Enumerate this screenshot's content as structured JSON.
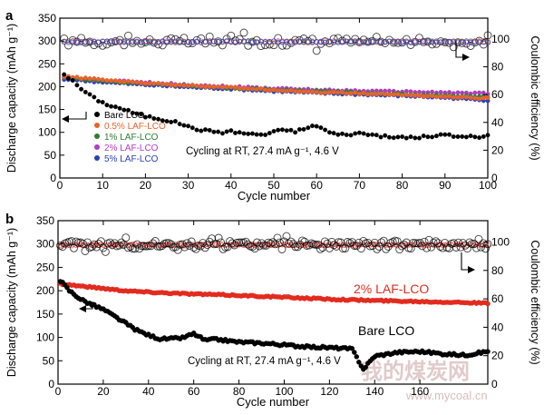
{
  "colors": {
    "bare": "#000000",
    "laf_0_5": "#e8632a",
    "laf_1": "#2e7d32",
    "laf_2_purple": "#b13cc0",
    "laf_5": "#2b3fb5",
    "laf_2_red": "#e22b1f",
    "axis": "#000000",
    "watermark": "#c9a0a0"
  },
  "watermark": {
    "text": "我的煤炭网",
    "url": "www.mycoal.cn"
  },
  "chart_data": [
    {
      "panel": "a",
      "type": "scatter",
      "annotation": "Cycling at RT, 27.4 mA g⁻¹, 4.6 V",
      "xlabel": "Cycle number",
      "ylabel": "Discharge capacity (mAh g⁻¹)",
      "y2label": "Coulombic efficiency (%)",
      "xlim": [
        0,
        100
      ],
      "ylim": [
        0,
        350
      ],
      "y2lim": [
        0,
        115
      ],
      "xticks": [
        0,
        10,
        20,
        30,
        40,
        50,
        60,
        70,
        80,
        90,
        100
      ],
      "yticks": [
        0,
        50,
        100,
        150,
        200,
        250,
        300,
        350
      ],
      "y2ticks": [
        0,
        20,
        40,
        60,
        80,
        100
      ],
      "legend_position": "lower-left",
      "series": [
        {
          "name": "Bare LCO",
          "color": "#000000",
          "capacity_x": [
            1,
            3,
            5,
            8,
            10,
            12,
            15,
            18,
            20,
            23,
            25,
            28,
            30,
            33,
            35,
            38,
            40,
            43,
            45,
            48,
            50,
            53,
            55,
            58,
            60,
            63,
            65,
            68,
            70,
            73,
            75,
            78,
            80,
            83,
            85,
            88,
            90,
            93,
            95,
            98,
            100
          ],
          "capacity_y": [
            228,
            212,
            195,
            175,
            165,
            158,
            150,
            140,
            135,
            130,
            126,
            120,
            112,
            105,
            103,
            100,
            102,
            98,
            96,
            95,
            102,
            105,
            102,
            110,
            115,
            100,
            95,
            96,
            98,
            95,
            92,
            88,
            90,
            88,
            90,
            92,
            95,
            90,
            92,
            88,
            92
          ]
        },
        {
          "name": "0.5% LAF-LCO",
          "color": "#e8632a",
          "capacity_x": [
            1,
            10,
            20,
            30,
            40,
            50,
            60,
            70,
            80,
            90,
            100
          ],
          "capacity_y": [
            222,
            215,
            208,
            203,
            198,
            193,
            188,
            185,
            182,
            178,
            174
          ]
        },
        {
          "name": "1% LAF-LCO",
          "color": "#2e7d32",
          "capacity_x": [
            1,
            10,
            20,
            30,
            40,
            50,
            60,
            70,
            80,
            90,
            100
          ],
          "capacity_y": [
            220,
            213,
            207,
            202,
            197,
            193,
            190,
            187,
            184,
            181,
            178
          ]
        },
        {
          "name": "2% LAF-LCO",
          "color": "#b13cc0",
          "capacity_x": [
            1,
            10,
            20,
            30,
            40,
            50,
            60,
            70,
            80,
            90,
            100
          ],
          "capacity_y": [
            221,
            214,
            209,
            204,
            200,
            196,
            193,
            191,
            189,
            187,
            185
          ]
        },
        {
          "name": "5% LAF-LCO",
          "color": "#2b3fb5",
          "capacity_x": [
            1,
            10,
            20,
            30,
            40,
            50,
            60,
            70,
            80,
            90,
            100
          ],
          "capacity_y": [
            216,
            210,
            204,
            199,
            195,
            190,
            186,
            183,
            180,
            176,
            170
          ]
        }
      ],
      "coulombic_efficiency": {
        "approx_level_percent": 98
      }
    },
    {
      "panel": "b",
      "type": "scatter",
      "annotation": "Cycling at RT, 27.4 mA g⁻¹, 4.6 V",
      "xlabel": "Cycle number",
      "ylabel": "Discharge capacity (mAh g⁻¹)",
      "y2label": "Coulombic efficiency (%)",
      "xlim": [
        0,
        190
      ],
      "ylim": [
        0,
        350
      ],
      "y2lim": [
        0,
        115
      ],
      "xticks": [
        0,
        20,
        40,
        60,
        80,
        100,
        120,
        140,
        160
      ],
      "yticks": [
        0,
        50,
        100,
        150,
        200,
        250,
        300,
        350
      ],
      "y2ticks": [
        0,
        20,
        40,
        60,
        80,
        100
      ],
      "series": [
        {
          "name": "2% LAF-LCO",
          "color": "#e22b1f",
          "capacity_x": [
            1,
            10,
            20,
            30,
            40,
            50,
            60,
            80,
            100,
            120,
            140,
            160,
            180,
            190
          ],
          "capacity_y": [
            215,
            210,
            205,
            200,
            197,
            195,
            193,
            190,
            186,
            182,
            179,
            177,
            175,
            173
          ]
        },
        {
          "name": "Bare LCO",
          "color": "#000000",
          "capacity_x": [
            1,
            5,
            10,
            15,
            20,
            25,
            30,
            35,
            40,
            45,
            50,
            55,
            60,
            65,
            70,
            80,
            90,
            100,
            110,
            120,
            125,
            130,
            135,
            140,
            150,
            160,
            170,
            180,
            190
          ],
          "capacity_y": [
            222,
            200,
            182,
            170,
            160,
            145,
            130,
            115,
            105,
            97,
            97,
            99,
            108,
            94,
            96,
            90,
            88,
            84,
            80,
            78,
            77,
            75,
            32,
            60,
            68,
            70,
            65,
            62,
            70
          ]
        }
      ],
      "coulombic_efficiency": {
        "approx_level_percent": 98
      }
    }
  ]
}
